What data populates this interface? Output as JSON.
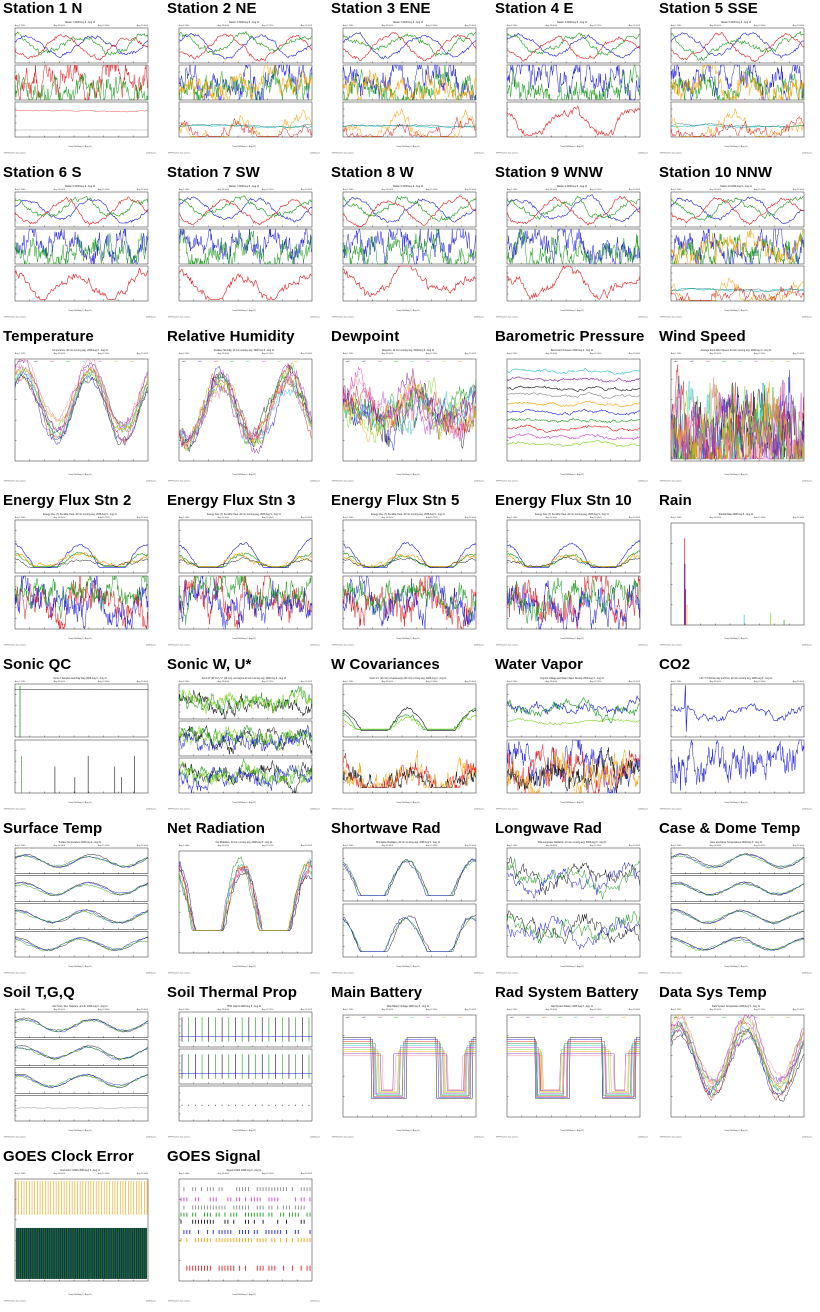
{
  "colors": {
    "red": "#e41a1c",
    "green": "#1a9b1a",
    "blue": "#1f1fe0",
    "black": "#111111",
    "orange": "#f5a000",
    "cyan": "#30c0c8",
    "magenta": "#d040d0",
    "lime": "#7ed321",
    "teal": "#1f7f7f",
    "gray": "#888888",
    "pink": "#f080a0",
    "purple": "#8020a0"
  },
  "panels": [
    {
      "title": "Station 1 N",
      "subtitle": "Station 1 2008 Aug 9 - Aug 11",
      "kind": "station_a"
    },
    {
      "title": "Station 2 NE",
      "subtitle": "Station 2 2008 Aug 9 - Aug 11",
      "kind": "station_b"
    },
    {
      "title": "Station 3 ENE",
      "subtitle": "Station 3 2008 Aug 9 - Aug 11",
      "kind": "station_b"
    },
    {
      "title": "Station 4 E",
      "subtitle": "Station 4 2008 Aug 9 - Aug 11",
      "kind": "station_c"
    },
    {
      "title": "Station 5 SSE",
      "subtitle": "Station 5 2008 Aug 9 - Aug 11",
      "kind": "station_b"
    },
    {
      "title": "Station 6 S",
      "subtitle": "Station 6 2008 Aug 9 - Aug 11",
      "kind": "station_c"
    },
    {
      "title": "Station 7 SW",
      "subtitle": "Station 7 2008 Aug 9 - Aug 11",
      "kind": "station_c"
    },
    {
      "title": "Station 8 W",
      "subtitle": "Station 8 2008 Aug 9 - Aug 11",
      "kind": "station_c"
    },
    {
      "title": "Station 9 WNW",
      "subtitle": "Station 9 2008 Aug 9 - Aug 11",
      "kind": "station_c"
    },
    {
      "title": "Station 10 NNW",
      "subtitle": "Station 10 2008 Aug 9 - Aug 11",
      "kind": "station_b"
    },
    {
      "title": "Temperature",
      "subtitle": "Temperature, 20 min running avg, 2008 Aug 9 - Aug 11",
      "kind": "multi_diurnal"
    },
    {
      "title": "Relative Humidity",
      "subtitle": "Relative Humidity, 20 min running avg, 2008 Aug 9 - Aug 11",
      "kind": "multi_inverse"
    },
    {
      "title": "Dewpoint",
      "subtitle": "Dewpoint, 20 min running avg, 2008 Aug 9 - Aug 11",
      "kind": "multi_noisy"
    },
    {
      "title": "Barometric Pressure",
      "subtitle": "Barometric Pressure 2008 Aug 9 - Aug 11",
      "kind": "multi_flat"
    },
    {
      "title": "Wind Speed",
      "subtitle": "Average Sonic Wind Speed, 20 min running avg, 2008 Aug 9 - Aug 11",
      "kind": "multi_spiky"
    },
    {
      "title": "Energy Flux Stn 2",
      "subtitle": "Energy Flux (H, Sensible Heat, 20 min running avg, 2008 Aug 9 - Aug 11",
      "kind": "energy"
    },
    {
      "title": "Energy Flux Stn 3",
      "subtitle": "Energy Flux (H, Sensible Heat, 20 min running avg, 2008 Aug 9 - Aug 11",
      "kind": "energy"
    },
    {
      "title": "Energy Flux Stn 5",
      "subtitle": "Energy Flux (H, Sensible Heat, 20 min running avg, 2008 Aug 9 - Aug 11",
      "kind": "energy"
    },
    {
      "title": "Energy Flux Stn 10",
      "subtitle": "Energy Flux (H, Sensible Heat, 20 min running avg, 2008 Aug 9 - Aug 11",
      "kind": "energy"
    },
    {
      "title": "Rain",
      "subtitle": "Rainfall Rate 2008 Aug 9 - Aug 11",
      "kind": "rain"
    },
    {
      "title": "Sonic QC",
      "subtitle": "Sonic # Samples and Diag Flag 2008 Aug 9 - Aug 11",
      "kind": "sonicqc"
    },
    {
      "title": "Sonic W, U*",
      "subtitle": "Sonic W (20 min), U* (20 min), and sigma 20 min running avg, 2008 Aug 9 - Aug 11",
      "kind": "three_noisy"
    },
    {
      "title": "W Covariances",
      "subtitle": "Sonic w'x' (20 min) covariance(s) (20 min) running avg, 2008 Aug 9 - Aug 11",
      "kind": "wcov"
    },
    {
      "title": "Water Vapor",
      "subtitle": "Krypton Voltage and Water Vapor Density 2008 Aug 9 - Aug 11",
      "kind": "watervapor"
    },
    {
      "title": "CO2",
      "subtitle": "Li6 7 5 CO2 Density and Flux, 20 min running avg, 2008 Aug 9 - Aug 11",
      "kind": "co2"
    },
    {
      "title": "Surface Temp",
      "subtitle": "Surface Temperature 2008 Aug 9 - Aug 11",
      "kind": "four_panel"
    },
    {
      "title": "Net Radiation",
      "subtitle": "Net Radiation, 20 min running avg, 2008 Aug 9 - Aug 11",
      "kind": "netrad"
    },
    {
      "title": "Shortwave Rad",
      "subtitle": "Shortwave Radiation, 20 min running avg, 2008 Aug 9 - Aug 11",
      "kind": "two_diurnal"
    },
    {
      "title": "Longwave Rad",
      "subtitle": "Total Longwave Radiation, 20 min running avg, 2008 Aug 9 - Aug 11",
      "kind": "two_noisy"
    },
    {
      "title": "Case & Dome Temp",
      "subtitle": "Case and Dome Temperatures 2008 Aug 9 - Aug 11",
      "kind": "four_panel"
    },
    {
      "title": "Soil T,G,Q",
      "subtitle": "Soil Temp, Flux, Moisture, and 2x 2008 Aug 9 - Aug 11",
      "kind": "soil"
    },
    {
      "title": "Soil Thermal Prop",
      "subtitle": "TP01 Output 2008 Aug 9 - Aug 11",
      "kind": "soilthermal"
    },
    {
      "title": "Main Battery",
      "subtitle": "Main Battery Voltage 2008 Aug 9 - Aug 11",
      "kind": "battery"
    },
    {
      "title": "Rad System Battery",
      "subtitle": "Rad System Battery 2008 Aug 9 - Aug 11",
      "kind": "battery"
    },
    {
      "title": "Data Sys Temp",
      "subtitle": "Data System Temperature 2008 Aug 9 - Aug 11",
      "kind": "multi_diurnal"
    },
    {
      "title": "GOES Clock Error",
      "subtitle": "Clock Error GOES 2008 Aug 9 - Aug 11",
      "kind": "goesclock"
    },
    {
      "title": "GOES Signal",
      "subtitle": "Signal GOES 2008 Aug 9 - Aug 11",
      "kind": "goessignal"
    }
  ],
  "footer_left": "ISFF/Realtime data stations",
  "footer_right": "2008 Aug 11",
  "x_ticks": [
    "Aug 9 1200",
    "Aug 10 0000",
    "Aug 10 1200",
    "Aug 11 0000"
  ],
  "x_label": "Time(2008 Aug 9 - Aug 11)"
}
